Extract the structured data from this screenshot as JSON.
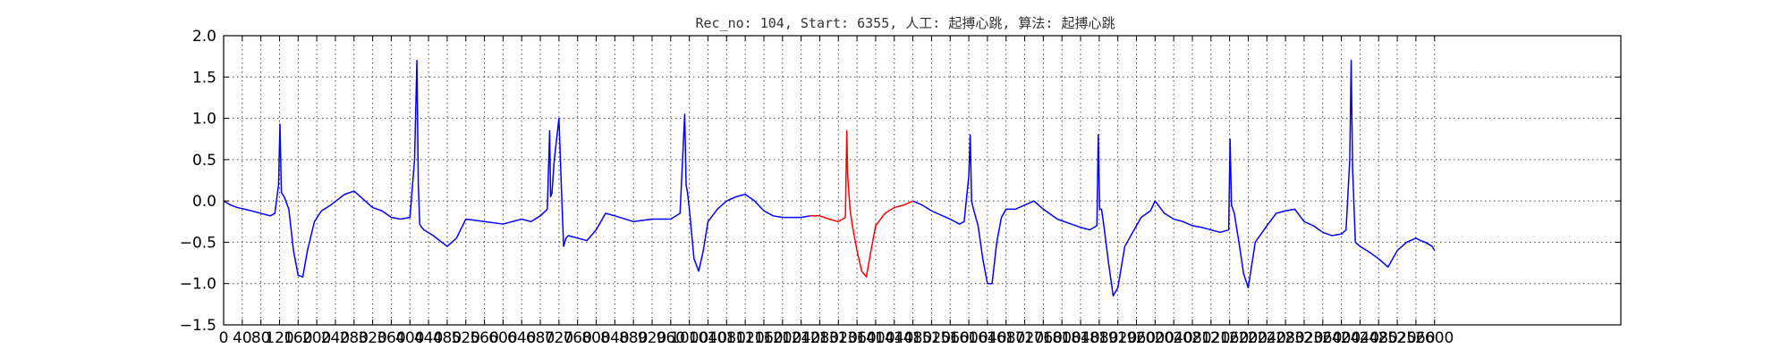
{
  "chart_data": {
    "type": "line",
    "title": "Rec_no: 104, Start: 6355, 人工: 起搏心跳, 算法: 起搏心跳",
    "xlabel": "",
    "ylabel": "",
    "xlim": [
      0,
      3000
    ],
    "ylim": [
      -1.5,
      2.0
    ],
    "grid": true,
    "x_tick_values": [
      0,
      40,
      80,
      120,
      160,
      200,
      240,
      280,
      320,
      360,
      400,
      440,
      480,
      520,
      560,
      600,
      640,
      680,
      720,
      760,
      800,
      840,
      880,
      920,
      960,
      1000,
      1040,
      1080,
      1120,
      1160,
      1200,
      1240,
      1280,
      1320,
      1360,
      1400,
      1440,
      1480,
      1520,
      1560,
      1600,
      1640,
      1680,
      1720,
      1760,
      1800,
      1840,
      1880,
      1920,
      1960,
      2000,
      2040,
      2080,
      2120,
      2160,
      2200,
      2240,
      2280,
      2320,
      2360,
      2400,
      2440,
      2480,
      2520,
      2560,
      2600
    ],
    "y_tick_values": [
      -1.5,
      -1.0,
      -0.5,
      0.0,
      0.5,
      1.0,
      1.5,
      2.0
    ],
    "x_tick_labels": [
      "0",
      "40",
      "80",
      "120",
      "160",
      "200",
      "240",
      "280",
      "320",
      "360",
      "400",
      "440",
      "480",
      "520",
      "560",
      "600",
      "640",
      "680",
      "720",
      "760",
      "800",
      "840",
      "880",
      "920",
      "960",
      "1000",
      "1040",
      "1080",
      "1120",
      "1160",
      "1200",
      "1240",
      "1280",
      "1320",
      "1360",
      "1400",
      "1440",
      "1480",
      "1520",
      "1560",
      "1600",
      "1640",
      "1680",
      "1720",
      "1760",
      "1800",
      "1840",
      "1880",
      "1920",
      "1960",
      "2000",
      "2040",
      "2080",
      "2120",
      "2160",
      "2200",
      "2240",
      "2280",
      "2320",
      "2360",
      "2400",
      "2440",
      "2480",
      "2520",
      "2560",
      "2600"
    ],
    "y_tick_labels": [
      "−1.5",
      "−1.0",
      "−0.5",
      "0.0",
      "0.5",
      "1.0",
      "1.5",
      "2.0"
    ],
    "series": [
      {
        "color": "#0000ff",
        "x": [
          0,
          15,
          30,
          60,
          100,
          110,
          118,
          121,
          124,
          130,
          140,
          150,
          160,
          170,
          180,
          195,
          210,
          230,
          260,
          280,
          300,
          320,
          340,
          360,
          380,
          400,
          410,
          415,
          418,
          421,
          425,
          430,
          450,
          480,
          500,
          520,
          560,
          600,
          640,
          660,
          680,
          695,
          700,
          702,
          705,
          710,
          720,
          725,
          730,
          735,
          740,
          760,
          780,
          800,
          820,
          840,
          880,
          920,
          960,
          980,
          990,
          993,
          996,
          1000,
          1010,
          1020,
          1030,
          1040,
          1060,
          1080,
          1100,
          1120,
          1140,
          1160,
          1180,
          1200,
          1220,
          1240,
          1260
        ],
        "y": [
          0.0,
          -0.05,
          -0.08,
          -0.12,
          -0.18,
          -0.15,
          0.2,
          0.93,
          0.1,
          0.05,
          -0.1,
          -0.6,
          -0.9,
          -0.92,
          -0.6,
          -0.25,
          -0.12,
          -0.05,
          0.08,
          0.12,
          0.02,
          -0.08,
          -0.12,
          -0.2,
          -0.22,
          -0.2,
          0.5,
          1.7,
          0.2,
          -0.28,
          -0.32,
          -0.35,
          -0.42,
          -0.55,
          -0.45,
          -0.22,
          -0.25,
          -0.28,
          -0.22,
          -0.25,
          -0.18,
          -0.1,
          0.85,
          0.05,
          0.1,
          0.5,
          1.0,
          0.2,
          -0.55,
          -0.45,
          -0.42,
          -0.45,
          -0.48,
          -0.35,
          -0.15,
          -0.18,
          -0.25,
          -0.22,
          -0.22,
          -0.15,
          1.05,
          0.2,
          0.1,
          -0.1,
          -0.7,
          -0.85,
          -0.6,
          -0.25,
          -0.1,
          0.0,
          0.05,
          0.08,
          0.0,
          -0.12,
          -0.18,
          -0.2,
          -0.2,
          -0.2,
          -0.18
        ]
      },
      {
        "color": "#ff0000",
        "x": [
          1260,
          1280,
          1300,
          1320,
          1335,
          1338,
          1340,
          1345,
          1350,
          1360,
          1370,
          1380,
          1390,
          1400,
          1420,
          1440,
          1460,
          1480
        ],
        "y": [
          -0.18,
          -0.18,
          -0.22,
          -0.25,
          -0.2,
          0.85,
          0.3,
          -0.1,
          -0.3,
          -0.6,
          -0.85,
          -0.92,
          -0.6,
          -0.3,
          -0.15,
          -0.08,
          -0.05,
          0.0
        ]
      },
      {
        "color": "#0000ff",
        "x": [
          1480,
          1500,
          1520,
          1560,
          1580,
          1590,
          1600,
          1603,
          1606,
          1610,
          1620,
          1630,
          1640,
          1650,
          1660,
          1670,
          1680,
          1700,
          1720,
          1740,
          1760,
          1790,
          1820,
          1840,
          1860,
          1875,
          1878,
          1881,
          1885,
          1890,
          1900,
          1910,
          1920,
          1935,
          1950,
          1970,
          1990,
          2000,
          2020,
          2040,
          2060,
          2080,
          2100,
          2120,
          2140,
          2158,
          2161,
          2164,
          2170,
          2180,
          2190,
          2200,
          2215,
          2240,
          2260,
          2280,
          2300,
          2320,
          2340,
          2360,
          2380,
          2400,
          2410,
          2418,
          2421,
          2424,
          2430,
          2440,
          2460,
          2480,
          2500,
          2520,
          2540,
          2560,
          2570,
          2580,
          2595,
          2600
        ],
        "y": [
          0.0,
          -0.05,
          -0.12,
          -0.22,
          -0.28,
          -0.25,
          0.3,
          0.8,
          0.0,
          -0.1,
          -0.3,
          -0.7,
          -1.0,
          -1.0,
          -0.5,
          -0.2,
          -0.1,
          -0.1,
          -0.05,
          0.0,
          -0.1,
          -0.22,
          -0.28,
          -0.32,
          -0.35,
          -0.3,
          0.8,
          -0.1,
          -0.1,
          -0.3,
          -0.75,
          -1.15,
          -1.05,
          -0.55,
          -0.4,
          -0.2,
          -0.12,
          0.0,
          -0.15,
          -0.22,
          -0.25,
          -0.3,
          -0.32,
          -0.35,
          -0.38,
          -0.35,
          0.75,
          -0.05,
          -0.15,
          -0.5,
          -0.88,
          -1.05,
          -0.5,
          -0.3,
          -0.15,
          -0.12,
          -0.1,
          -0.25,
          -0.3,
          -0.38,
          -0.42,
          -0.4,
          -0.35,
          0.5,
          1.7,
          0.4,
          -0.5,
          -0.55,
          -0.62,
          -0.7,
          -0.8,
          -0.6,
          -0.5,
          -0.45,
          -0.48,
          -0.5,
          -0.55,
          -0.6
        ]
      }
    ]
  }
}
